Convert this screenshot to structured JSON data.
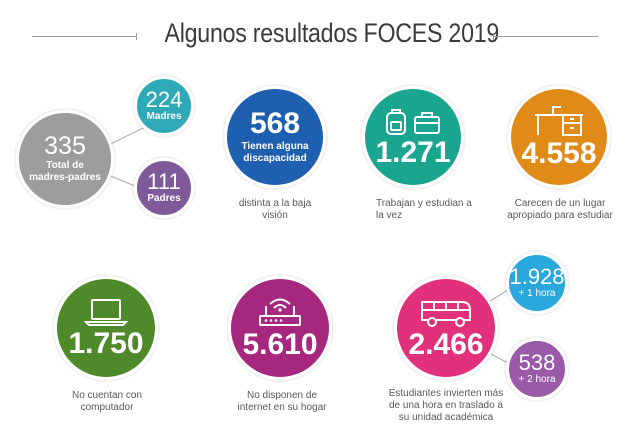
{
  "title": "Algunos resultados FOCES 2019",
  "colors": {
    "gray": "#9d9d9d",
    "teal": "#2fa9b8",
    "purple": "#7e5a9b",
    "blue": "#1f5fb0",
    "green": "#1aa58f",
    "orange": "#e08b18",
    "olive": "#4e8a2a",
    "magenta": "#a6277e",
    "pink": "#e0317a",
    "lightblue": "#2aa8dc",
    "violet": "#9a5aa8"
  },
  "parents": {
    "total_value": "335",
    "total_label_1": "Total de",
    "total_label_2": "madres-padres",
    "mothers_value": "224",
    "mothers_label": "Madres",
    "fathers_value": "111",
    "fathers_label": "Padres"
  },
  "disability": {
    "value": "568",
    "label_1": "Tienen alguna",
    "label_2": "discapacidad",
    "caption_1": "distinta a la baja",
    "caption_2": "visión",
    "icon": "none"
  },
  "work_study": {
    "value": "1.271",
    "caption_1": "Trabajan y estudian a",
    "caption_2": "la vez",
    "icon": "backpack-and-briefcase-icon"
  },
  "study_place": {
    "value": "4.558",
    "caption_1": "Carecen de un lugar",
    "caption_2": "apropiado para estudiar",
    "icon": "desk-icon"
  },
  "computer": {
    "value": "1.750",
    "caption_1": "No cuentan con",
    "caption_2": "computador",
    "icon": "laptop-icon"
  },
  "internet": {
    "value": "5.610",
    "caption_1": "No disponen de",
    "caption_2": "internet en su hogar",
    "icon": "router-icon"
  },
  "commute": {
    "value": "2.466",
    "caption_1": "Estudiantes invierten más",
    "caption_2": "de una hora en traslado a",
    "caption_3": "su unidad académica",
    "icon": "bus-icon",
    "one_hour_value": "1.928",
    "one_hour_label": "+ 1 hora",
    "two_hours_value": "538",
    "two_hours_label": "+ 2 hora"
  }
}
